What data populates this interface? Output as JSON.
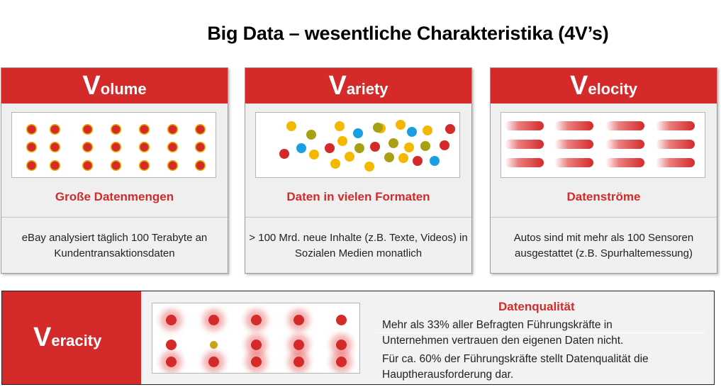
{
  "title": "Big Data – wesentliche Charakteristika (4V’s)",
  "colors": {
    "red": "#d42a2a",
    "yellow": "#f5b800",
    "olive": "#a8a013",
    "blue": "#1aa0e0"
  },
  "cards": [
    {
      "initial": "V",
      "rest": "olume",
      "subtitle": "Große Datenmengen",
      "description": "eBay analysiert täglich 100 Terabyte an Kundentransaktionsdaten"
    },
    {
      "initial": "V",
      "rest": "ariety",
      "subtitle": "Daten in vielen Formaten",
      "description": "> 100 Mrd. neue Inhalte (z.B. Texte, Videos) in Sozialen Medien monatlich"
    },
    {
      "initial": "V",
      "rest": "elocity",
      "subtitle": "Datenströme",
      "description": "Autos sind mit mehr als 100 Sensoren ausgestattet (z.B. Spurhaltemessung)"
    }
  ],
  "veracity": {
    "initial": "V",
    "rest": "eracity",
    "subtitle": "Datenqualität",
    "lines": [
      "Mehr als 33% aller Befragten Führungskräfte in",
      "Unternehmen vertrauen den eigenen Daten nicht.",
      "Für ca. 60% der Führungskräfte stellt Datenqualität die",
      "Hauptherausforderung dar."
    ]
  }
}
